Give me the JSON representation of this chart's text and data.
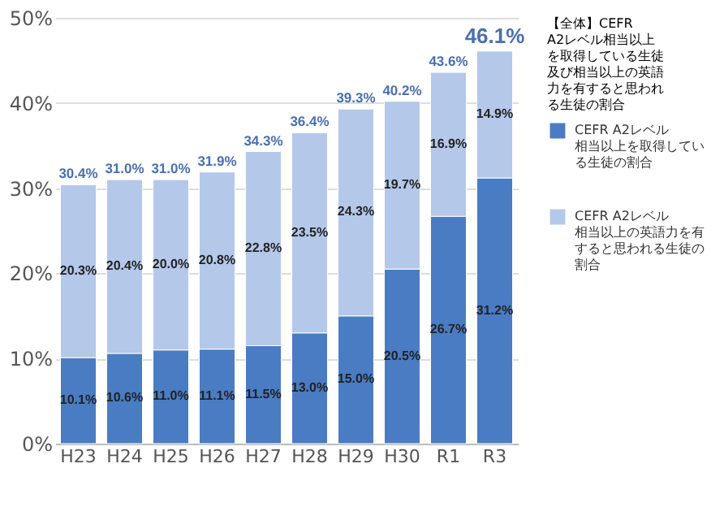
{
  "chart_data": {
    "type": "bar",
    "stacked": true,
    "categories": [
      "H23",
      "H24",
      "H25",
      "H26",
      "H27",
      "H28",
      "H29",
      "H30",
      "R1",
      "R3"
    ],
    "series": [
      {
        "name": "CEFR A2レベル相当以上を取得している生徒の割合",
        "color": "#4a7cc4",
        "values": [
          10.1,
          10.6,
          11.0,
          11.1,
          11.5,
          13.0,
          15.0,
          20.5,
          26.7,
          31.2
        ],
        "value_labels": [
          "10.1%",
          "10.6%",
          "11.0%",
          "11.1%",
          "11.5%",
          "13.0%",
          "15.0%",
          "20.5%",
          "26.7%",
          "31.2%"
        ]
      },
      {
        "name": "CEFR A2レベル相当以上の英語力を有すると思われる生徒の割合",
        "color": "#b4c8ea",
        "values": [
          20.3,
          20.4,
          20.0,
          20.8,
          22.8,
          23.5,
          24.3,
          19.7,
          16.9,
          14.9
        ],
        "value_labels": [
          "20.3%",
          "20.4%",
          "20.0%",
          "20.8%",
          "22.8%",
          "23.5%",
          "24.3%",
          "19.7%",
          "16.9%",
          "14.9%"
        ]
      }
    ],
    "totals": [
      "30.4%",
      "31.0%",
      "31.0%",
      "31.9%",
      "34.3%",
      "36.4%",
      "39.3%",
      "40.2%",
      "43.6%",
      "46.1%"
    ],
    "legend_title": "【全体】CEFR A2レベル相当以上を取得している生徒及び相当以上の英語力を有すると思われる生徒の割合",
    "ylim": [
      0,
      50
    ],
    "yticks": [
      {
        "value": 0,
        "label": "0%"
      },
      {
        "value": 10,
        "label": "10%"
      },
      {
        "value": 20,
        "label": "20%"
      },
      {
        "value": 30,
        "label": "30%"
      },
      {
        "value": 40,
        "label": "40%"
      },
      {
        "value": 50,
        "label": "50%"
      }
    ],
    "grid": "y",
    "legend": "right"
  }
}
